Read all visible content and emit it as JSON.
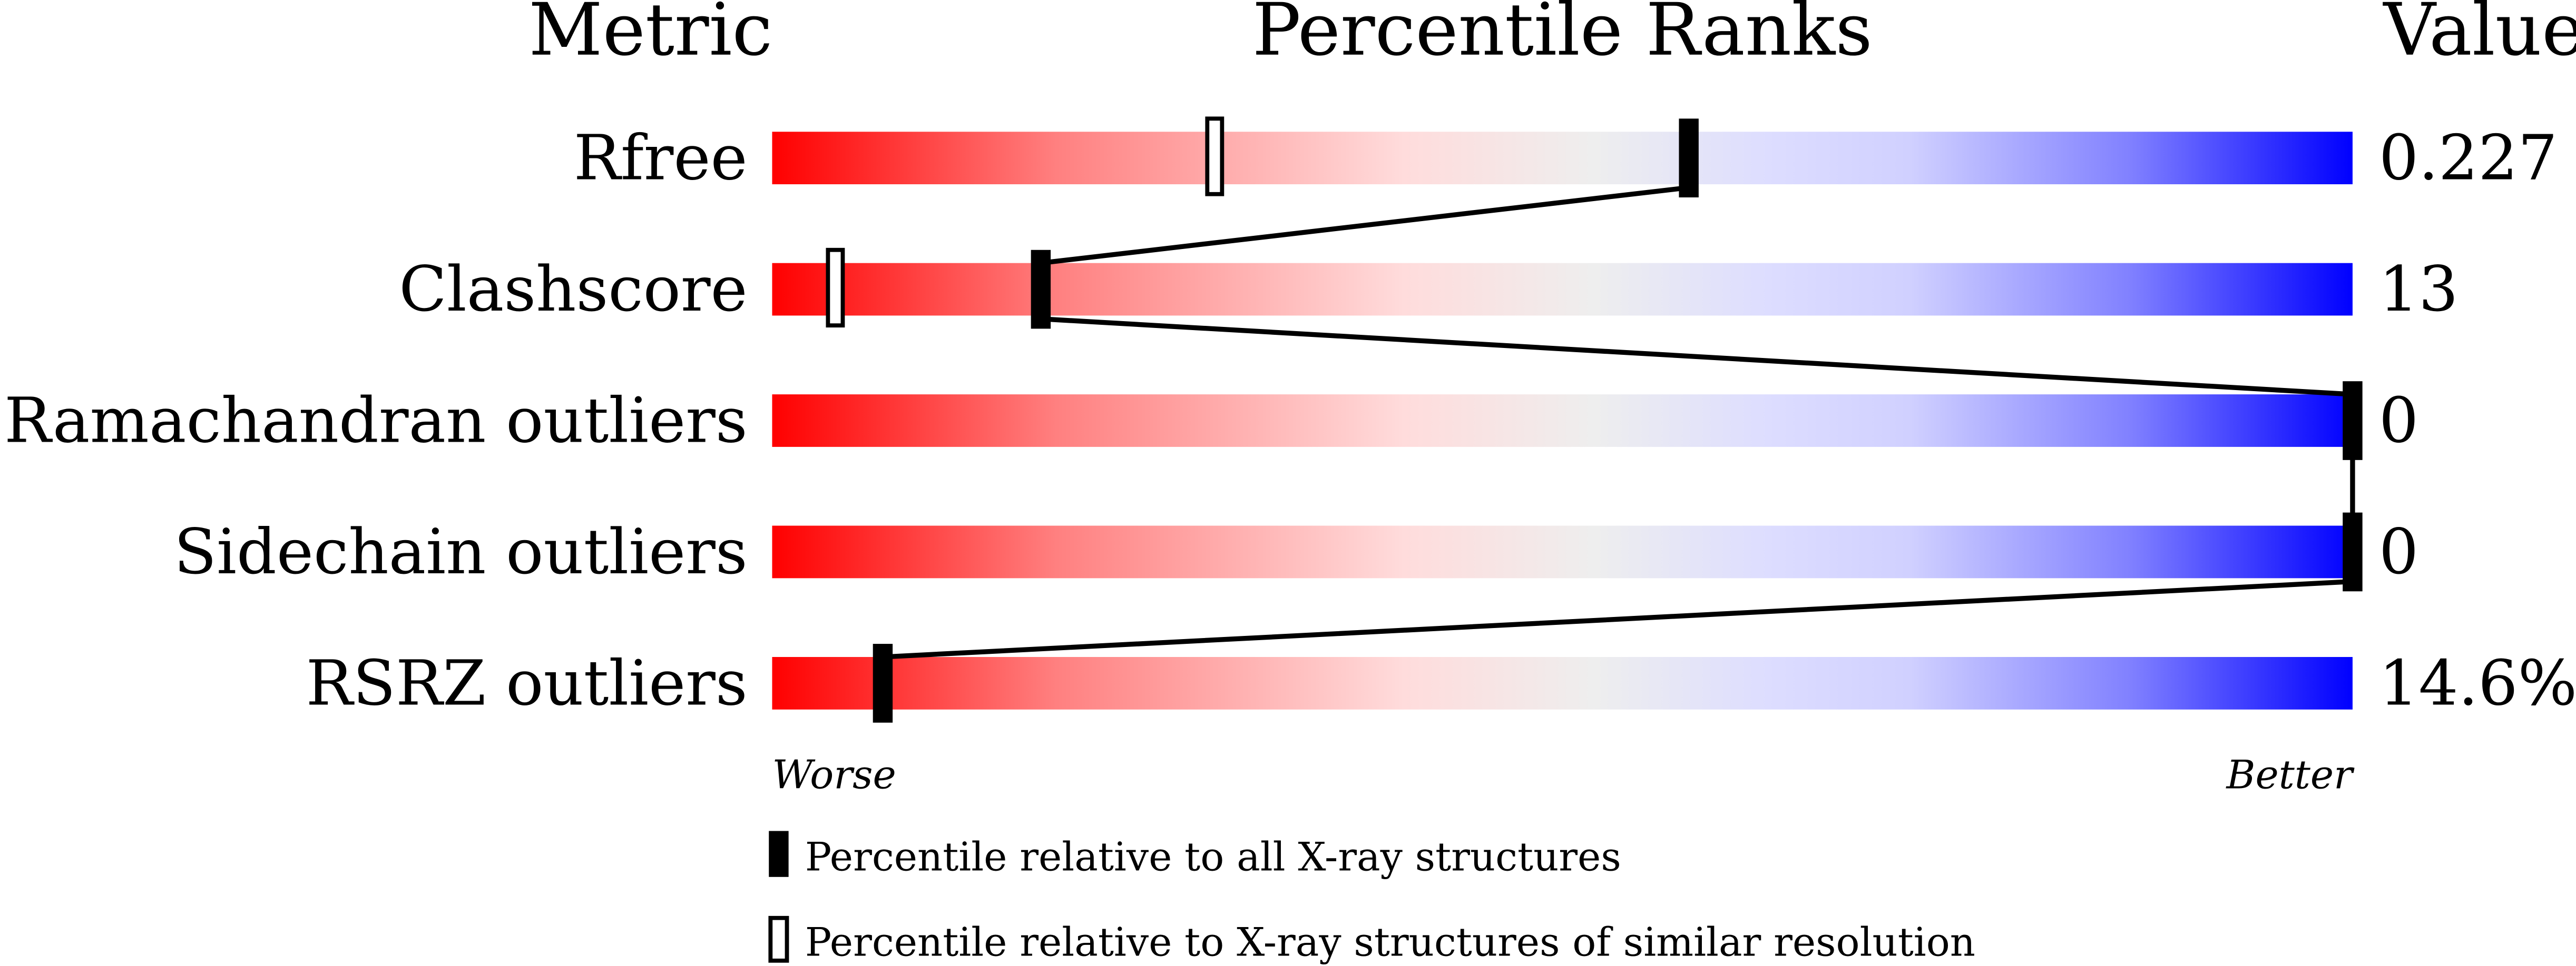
{
  "chart_data": {
    "type": "percentile-slider",
    "headers": {
      "metric": "Metric",
      "ranks": "Percentile Ranks",
      "value": "Value"
    },
    "axis": {
      "worse_label": "Worse",
      "better_label": "Better",
      "range": [
        0,
        100
      ]
    },
    "metrics": [
      {
        "name": "Rfree",
        "value": "0.227",
        "percentile_all": 58,
        "percentile_similar": 28
      },
      {
        "name": "Clashscore",
        "value": "13",
        "percentile_all": 17,
        "percentile_similar": 4
      },
      {
        "name": "Ramachandran outliers",
        "value": "0",
        "percentile_all": 100,
        "percentile_similar": null
      },
      {
        "name": "Sidechain outliers",
        "value": "0",
        "percentile_all": 100,
        "percentile_similar": null
      },
      {
        "name": "RSRZ outliers",
        "value": "14.6%",
        "percentile_all": 7,
        "percentile_similar": null
      }
    ],
    "legend": {
      "filled": "Percentile relative to all X-ray structures",
      "open": "Percentile relative to X-ray structures of similar resolution"
    },
    "colors": {
      "worse": "#ff0000",
      "middle": "#eeeeee",
      "better": "#0000ff",
      "marker": "#000000"
    }
  }
}
